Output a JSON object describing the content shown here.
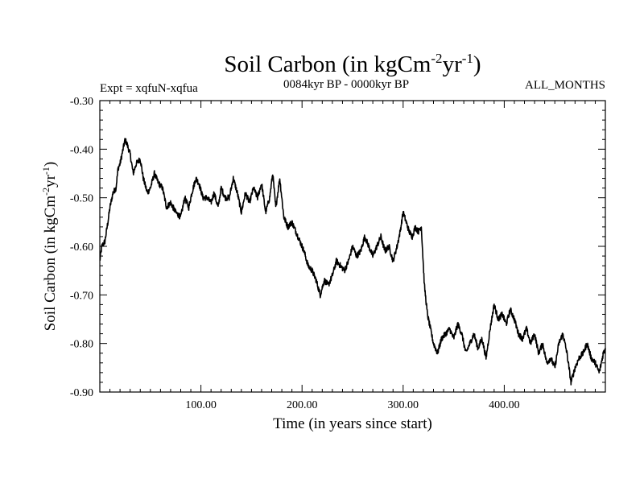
{
  "chart_data": {
    "type": "line",
    "title": {
      "main": "Soil Carbon (in kgCm",
      "unit_exp1": "-2",
      "unit_mid": "yr",
      "unit_exp2": "-1",
      "unit_close": ")"
    },
    "subtitle_left": "Expt = xqfuN-xqfua",
    "subtitle_center": "0084kyr BP - 0000kyr BP",
    "subtitle_right": "ALL_MONTHS",
    "xlabel": "Time (in years since start)",
    "ylabel": {
      "main": "Soil Carbon (in kgCm",
      "exp1": "-2",
      "mid": "yr",
      "exp2": "-1",
      "close": ")"
    },
    "xlim": [
      0,
      500
    ],
    "ylim": [
      -0.9,
      -0.3
    ],
    "x_ticks": [
      {
        "value": 100,
        "label": "100.00"
      },
      {
        "value": 200,
        "label": "200.00"
      },
      {
        "value": 300,
        "label": "300.00"
      },
      {
        "value": 400,
        "label": "400.00"
      }
    ],
    "y_ticks": [
      {
        "value": -0.3,
        "label": "-0.30"
      },
      {
        "value": -0.4,
        "label": "-0.40"
      },
      {
        "value": -0.5,
        "label": "-0.50"
      },
      {
        "value": -0.6,
        "label": "-0.60"
      },
      {
        "value": -0.7,
        "label": "-0.70"
      },
      {
        "value": -0.8,
        "label": "-0.80"
      },
      {
        "value": -0.9,
        "label": "-0.90"
      }
    ],
    "series": [
      {
        "name": "Soil Carbon",
        "color": "#000000",
        "noise": 0.006,
        "x": [
          0,
          2,
          5,
          8,
          10,
          13,
          16,
          18,
          20,
          22,
          25,
          27,
          30,
          33,
          36,
          40,
          43,
          47,
          50,
          54,
          58,
          62,
          66,
          70,
          75,
          80,
          84,
          88,
          91,
          95,
          98,
          102,
          106,
          110,
          113,
          117,
          120,
          124,
          128,
          132,
          136,
          140,
          144,
          148,
          152,
          156,
          160,
          164,
          168,
          171,
          174,
          178,
          182,
          186,
          190,
          194,
          198,
          202,
          206,
          210,
          214,
          218,
          222,
          226,
          230,
          234,
          238,
          242,
          246,
          250,
          254,
          258,
          262,
          266,
          270,
          274,
          278,
          282,
          286,
          290,
          294,
          297,
          300,
          303,
          306,
          309,
          312,
          315,
          318,
          321,
          324,
          327,
          330,
          334,
          338,
          342,
          346,
          350,
          354,
          358,
          362,
          366,
          370,
          374,
          378,
          382,
          386,
          390,
          394,
          398,
          402,
          406,
          410,
          414,
          418,
          422,
          426,
          430,
          434,
          438,
          442,
          446,
          450,
          454,
          458,
          462,
          466,
          470,
          474,
          478,
          482,
          486,
          490,
          494,
          498,
          500
        ],
        "values": [
          -0.63,
          -0.6,
          -0.59,
          -0.55,
          -0.52,
          -0.49,
          -0.48,
          -0.44,
          -0.43,
          -0.41,
          -0.38,
          -0.39,
          -0.41,
          -0.45,
          -0.43,
          -0.42,
          -0.46,
          -0.49,
          -0.48,
          -0.45,
          -0.47,
          -0.48,
          -0.52,
          -0.51,
          -0.53,
          -0.54,
          -0.5,
          -0.52,
          -0.49,
          -0.46,
          -0.47,
          -0.5,
          -0.5,
          -0.51,
          -0.49,
          -0.52,
          -0.48,
          -0.5,
          -0.5,
          -0.46,
          -0.49,
          -0.53,
          -0.49,
          -0.51,
          -0.48,
          -0.5,
          -0.47,
          -0.53,
          -0.5,
          -0.45,
          -0.52,
          -0.46,
          -0.54,
          -0.56,
          -0.55,
          -0.57,
          -0.59,
          -0.61,
          -0.64,
          -0.65,
          -0.67,
          -0.7,
          -0.67,
          -0.68,
          -0.66,
          -0.63,
          -0.64,
          -0.65,
          -0.63,
          -0.6,
          -0.62,
          -0.61,
          -0.58,
          -0.6,
          -0.62,
          -0.6,
          -0.58,
          -0.61,
          -0.6,
          -0.63,
          -0.6,
          -0.57,
          -0.53,
          -0.55,
          -0.57,
          -0.58,
          -0.56,
          -0.57,
          -0.56,
          -0.68,
          -0.74,
          -0.77,
          -0.8,
          -0.82,
          -0.79,
          -0.78,
          -0.77,
          -0.79,
          -0.76,
          -0.78,
          -0.82,
          -0.8,
          -0.78,
          -0.81,
          -0.79,
          -0.83,
          -0.77,
          -0.72,
          -0.75,
          -0.74,
          -0.76,
          -0.73,
          -0.75,
          -0.78,
          -0.79,
          -0.77,
          -0.8,
          -0.78,
          -0.82,
          -0.8,
          -0.84,
          -0.83,
          -0.85,
          -0.8,
          -0.78,
          -0.82,
          -0.88,
          -0.85,
          -0.83,
          -0.82,
          -0.8,
          -0.83,
          -0.84,
          -0.86,
          -0.82,
          -0.81
        ]
      }
    ]
  }
}
